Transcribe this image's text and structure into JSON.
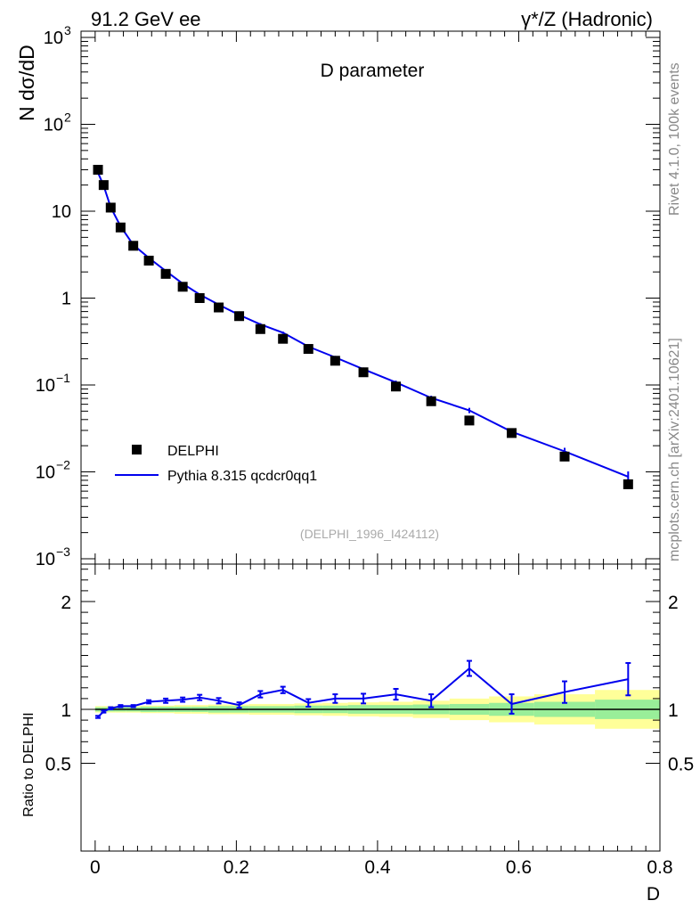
{
  "header": {
    "left_title": "91.2 GeV ee",
    "right_title": "γ*/Z (Hadronic)",
    "side_rivet": "Rivet 4.1.0,  100k events",
    "side_mcplots": "mcplots.cern.ch [arXiv:2401.10621]"
  },
  "chart_data": [
    {
      "type": "scatter",
      "title": "D parameter",
      "ylabel": "N  dσ/dD",
      "yscale": "log",
      "ylim": [
        0.001,
        1000
      ],
      "xlim": [
        -0.02,
        0.8
      ],
      "analysis": "(DELPHI_1996_I424112)",
      "yticks": [
        {
          "value": 1000,
          "label": "10",
          "exp": "3"
        },
        {
          "value": 100,
          "label": "10",
          "exp": "2"
        },
        {
          "value": 10,
          "label": "10",
          "exp": ""
        },
        {
          "value": 1,
          "label": "1",
          "exp": ""
        },
        {
          "value": 0.1,
          "label": "10",
          "exp": "−1"
        },
        {
          "value": 0.01,
          "label": "10",
          "exp": "−2"
        },
        {
          "value": 0.001,
          "label": "10",
          "exp": "−3"
        }
      ],
      "legend": {
        "data_label": "DELPHI",
        "mc_label": "Pythia 8.315 qcdcr0qq1"
      },
      "x": [
        0.004,
        0.012,
        0.022,
        0.036,
        0.054,
        0.076,
        0.1,
        0.124,
        0.148,
        0.175,
        0.204,
        0.234,
        0.266,
        0.302,
        0.34,
        0.38,
        0.426,
        0.476,
        0.53,
        0.59,
        0.665,
        0.755
      ],
      "series": [
        {
          "name": "DELPHI",
          "values": [
            30,
            20,
            11,
            6.5,
            4.0,
            2.7,
            1.9,
            1.35,
            1.0,
            0.78,
            0.62,
            0.44,
            0.34,
            0.26,
            0.19,
            0.14,
            0.096,
            0.065,
            0.039,
            0.028,
            0.015,
            0.0072
          ]
        },
        {
          "name": "Pythia 8.315 qcdcr0qq1",
          "values": [
            27.8,
            19.6,
            11.1,
            6.7,
            4.1,
            2.9,
            2.05,
            1.47,
            1.1,
            0.84,
            0.64,
            0.5,
            0.4,
            0.277,
            0.208,
            0.152,
            0.107,
            0.071,
            0.051,
            0.029,
            0.0172,
            0.0088
          ]
        }
      ]
    },
    {
      "type": "line",
      "ylabel": "Ratio to DELPHI",
      "xlabel": "D",
      "ylim": [
        0.4,
        2.4
      ],
      "yticks": [
        0.5,
        1,
        2
      ],
      "ytick_labels": [
        "0.5",
        "1",
        "2"
      ],
      "xticks": [
        0,
        0.2,
        0.4,
        0.6,
        0.8
      ],
      "xtick_labels": [
        "0",
        "0.2",
        "0.4",
        "0.6",
        "0.8"
      ],
      "x": [
        0.004,
        0.012,
        0.022,
        0.036,
        0.054,
        0.076,
        0.1,
        0.124,
        0.148,
        0.175,
        0.204,
        0.234,
        0.266,
        0.302,
        0.34,
        0.38,
        0.426,
        0.476,
        0.53,
        0.59,
        0.665,
        0.755
      ],
      "bin_edges": [
        0,
        0.008,
        0.016,
        0.028,
        0.044,
        0.064,
        0.088,
        0.112,
        0.136,
        0.16,
        0.19,
        0.218,
        0.25,
        0.282,
        0.322,
        0.358,
        0.402,
        0.45,
        0.502,
        0.558,
        0.622,
        0.708,
        0.8
      ],
      "ratio": [
        0.93,
        0.98,
        1.01,
        1.03,
        1.03,
        1.07,
        1.08,
        1.09,
        1.11,
        1.08,
        1.04,
        1.14,
        1.18,
        1.06,
        1.1,
        1.1,
        1.14,
        1.08,
        1.38,
        1.05,
        1.16,
        1.28
      ],
      "ratio_err": [
        0.01,
        0.01,
        0.01,
        0.01,
        0.01,
        0.015,
        0.02,
        0.02,
        0.025,
        0.025,
        0.025,
        0.03,
        0.03,
        0.035,
        0.04,
        0.045,
        0.05,
        0.06,
        0.07,
        0.09,
        0.1,
        0.15
      ],
      "band_green": [
        0.02,
        0.02,
        0.02,
        0.02,
        0.02,
        0.025,
        0.025,
        0.025,
        0.025,
        0.03,
        0.03,
        0.03,
        0.03,
        0.035,
        0.035,
        0.04,
        0.04,
        0.045,
        0.05,
        0.06,
        0.07,
        0.09
      ],
      "band_yellow": [
        0.03,
        0.03,
        0.03,
        0.03,
        0.03,
        0.035,
        0.035,
        0.04,
        0.04,
        0.045,
        0.045,
        0.05,
        0.05,
        0.055,
        0.06,
        0.065,
        0.07,
        0.08,
        0.1,
        0.12,
        0.14,
        0.18
      ]
    }
  ]
}
